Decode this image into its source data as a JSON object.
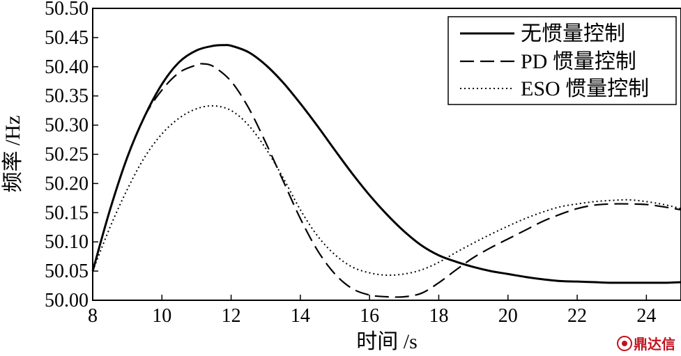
{
  "chart_data": {
    "type": "line",
    "title": "",
    "xlabel": "时间 /s",
    "ylabel": "频率 /Hz",
    "xlim": [
      8,
      25
    ],
    "ylim": [
      50.0,
      50.5
    ],
    "xticks": [
      8,
      10,
      12,
      14,
      16,
      18,
      20,
      22,
      24
    ],
    "yticks": [
      "50.00",
      "50.05",
      "50.10",
      "50.15",
      "50.20",
      "50.25",
      "50.30",
      "50.35",
      "50.40",
      "50.45",
      "50.50"
    ],
    "grid": false,
    "legend_position": "top-right",
    "series": [
      {
        "name": "无惯量控制",
        "style": "solid",
        "x": [
          8,
          8.5,
          9,
          9.5,
          10,
          10.5,
          11,
          11.5,
          11.8,
          12,
          12.5,
          13,
          13.5,
          14,
          14.5,
          15,
          15.5,
          16,
          16.5,
          17,
          17.5,
          18,
          18.5,
          19,
          19.5,
          20,
          20.5,
          21,
          21.5,
          22,
          22.5,
          23,
          23.5,
          24,
          24.5,
          25
        ],
        "y": [
          50.05,
          50.155,
          50.245,
          50.315,
          50.37,
          50.408,
          50.428,
          50.436,
          50.437,
          50.436,
          50.425,
          50.403,
          50.373,
          50.337,
          50.298,
          50.257,
          50.217,
          50.18,
          50.147,
          50.118,
          50.094,
          50.077,
          50.066,
          50.057,
          50.05,
          50.045,
          50.04,
          50.036,
          50.033,
          50.032,
          50.031,
          50.03,
          50.03,
          50.03,
          50.03,
          50.031
        ]
      },
      {
        "name": "PD 惯量控制",
        "style": "dashed",
        "x": [
          8,
          8.5,
          9,
          9.5,
          10,
          10.5,
          11,
          11.2,
          11.5,
          12,
          12.5,
          13,
          13.5,
          14,
          14.5,
          15,
          15.5,
          16,
          16.5,
          17,
          17.5,
          18,
          18.5,
          19,
          19.5,
          20,
          20.5,
          21,
          21.5,
          22,
          22.5,
          23,
          23.5,
          24,
          24.5,
          25
        ],
        "y": [
          50.05,
          50.155,
          50.245,
          50.315,
          50.36,
          50.39,
          50.403,
          50.405,
          50.4,
          50.375,
          50.33,
          50.27,
          50.205,
          50.14,
          50.085,
          50.045,
          50.02,
          50.009,
          50.006,
          50.006,
          50.012,
          50.03,
          50.052,
          50.073,
          50.09,
          50.105,
          50.12,
          50.135,
          50.147,
          50.157,
          50.163,
          50.165,
          50.165,
          50.164,
          50.16,
          50.155
        ]
      },
      {
        "name": "ESO 惯量控制",
        "style": "dotted",
        "x": [
          8,
          8.5,
          9,
          9.5,
          10,
          10.5,
          11,
          11.5,
          12,
          12.5,
          13,
          13.5,
          14,
          14.5,
          15,
          15.5,
          16,
          16.5,
          17,
          17.5,
          18,
          18.5,
          19,
          19.5,
          20,
          20.5,
          21,
          21.5,
          22,
          22.5,
          23,
          23.5,
          24,
          24.5,
          25
        ],
        "y": [
          50.05,
          50.125,
          50.19,
          50.245,
          50.285,
          50.312,
          50.328,
          50.333,
          50.325,
          50.3,
          50.26,
          50.21,
          50.155,
          50.11,
          50.078,
          50.057,
          50.047,
          50.043,
          50.045,
          50.052,
          50.065,
          50.082,
          50.098,
          50.113,
          50.127,
          50.14,
          50.151,
          50.16,
          50.165,
          50.169,
          50.171,
          50.172,
          50.169,
          50.164,
          50.157
        ]
      }
    ]
  },
  "watermark": {
    "text": "鼎达信",
    "color": "#c0121e",
    "logo_icon": "circle-logo-icon"
  }
}
